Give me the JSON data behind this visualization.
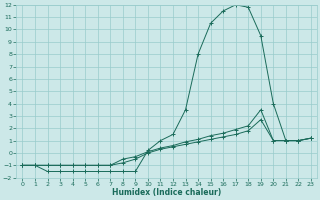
{
  "xlabel": "Humidex (Indice chaleur)",
  "background_color": "#cce8e8",
  "grid_color": "#99cccc",
  "line_color": "#1a6b5a",
  "xlim": [
    -0.5,
    23.5
  ],
  "ylim": [
    -2,
    12
  ],
  "xticks": [
    0,
    1,
    2,
    3,
    4,
    5,
    6,
    7,
    8,
    9,
    10,
    11,
    12,
    13,
    14,
    15,
    16,
    17,
    18,
    19,
    20,
    21,
    22,
    23
  ],
  "yticks": [
    -2,
    -1,
    0,
    1,
    2,
    3,
    4,
    5,
    6,
    7,
    8,
    9,
    10,
    11,
    12
  ],
  "series": [
    {
      "x": [
        0,
        1,
        2,
        3,
        4,
        5,
        6,
        7,
        8,
        9,
        10,
        11,
        12,
        13,
        14,
        15,
        16,
        17,
        18,
        19,
        20,
        21,
        22,
        23
      ],
      "y": [
        -1,
        -1,
        -1.5,
        -1.5,
        -1.5,
        -1.5,
        -1.5,
        -1.5,
        -1.5,
        -1.5,
        0.2,
        1.0,
        1.5,
        3.5,
        8.0,
        10.5,
        11.5,
        12.0,
        11.8,
        9.5,
        4.0,
        1.0,
        1.0,
        1.2
      ]
    },
    {
      "x": [
        0,
        1,
        2,
        3,
        4,
        5,
        6,
        7,
        8,
        9,
        10,
        11,
        12,
        13,
        14,
        15,
        16,
        17,
        18,
        19,
        20,
        21,
        22,
        23
      ],
      "y": [
        -1,
        -1,
        -1,
        -1,
        -1,
        -1,
        -1,
        -1,
        -0.8,
        -0.5,
        0.0,
        0.3,
        0.5,
        0.7,
        0.9,
        1.1,
        1.3,
        1.5,
        1.8,
        2.7,
        1.0,
        1.0,
        1.0,
        1.2
      ]
    },
    {
      "x": [
        0,
        1,
        2,
        3,
        4,
        5,
        6,
        7,
        8,
        9,
        10,
        11,
        12,
        13,
        14,
        15,
        16,
        17,
        18,
        19,
        20,
        21,
        22,
        23
      ],
      "y": [
        -1,
        -1,
        -1,
        -1,
        -1,
        -1,
        -1,
        -1,
        -0.5,
        -0.3,
        0.1,
        0.4,
        0.6,
        0.9,
        1.1,
        1.4,
        1.6,
        1.9,
        2.2,
        3.5,
        1.0,
        1.0,
        1.0,
        1.2
      ]
    }
  ]
}
